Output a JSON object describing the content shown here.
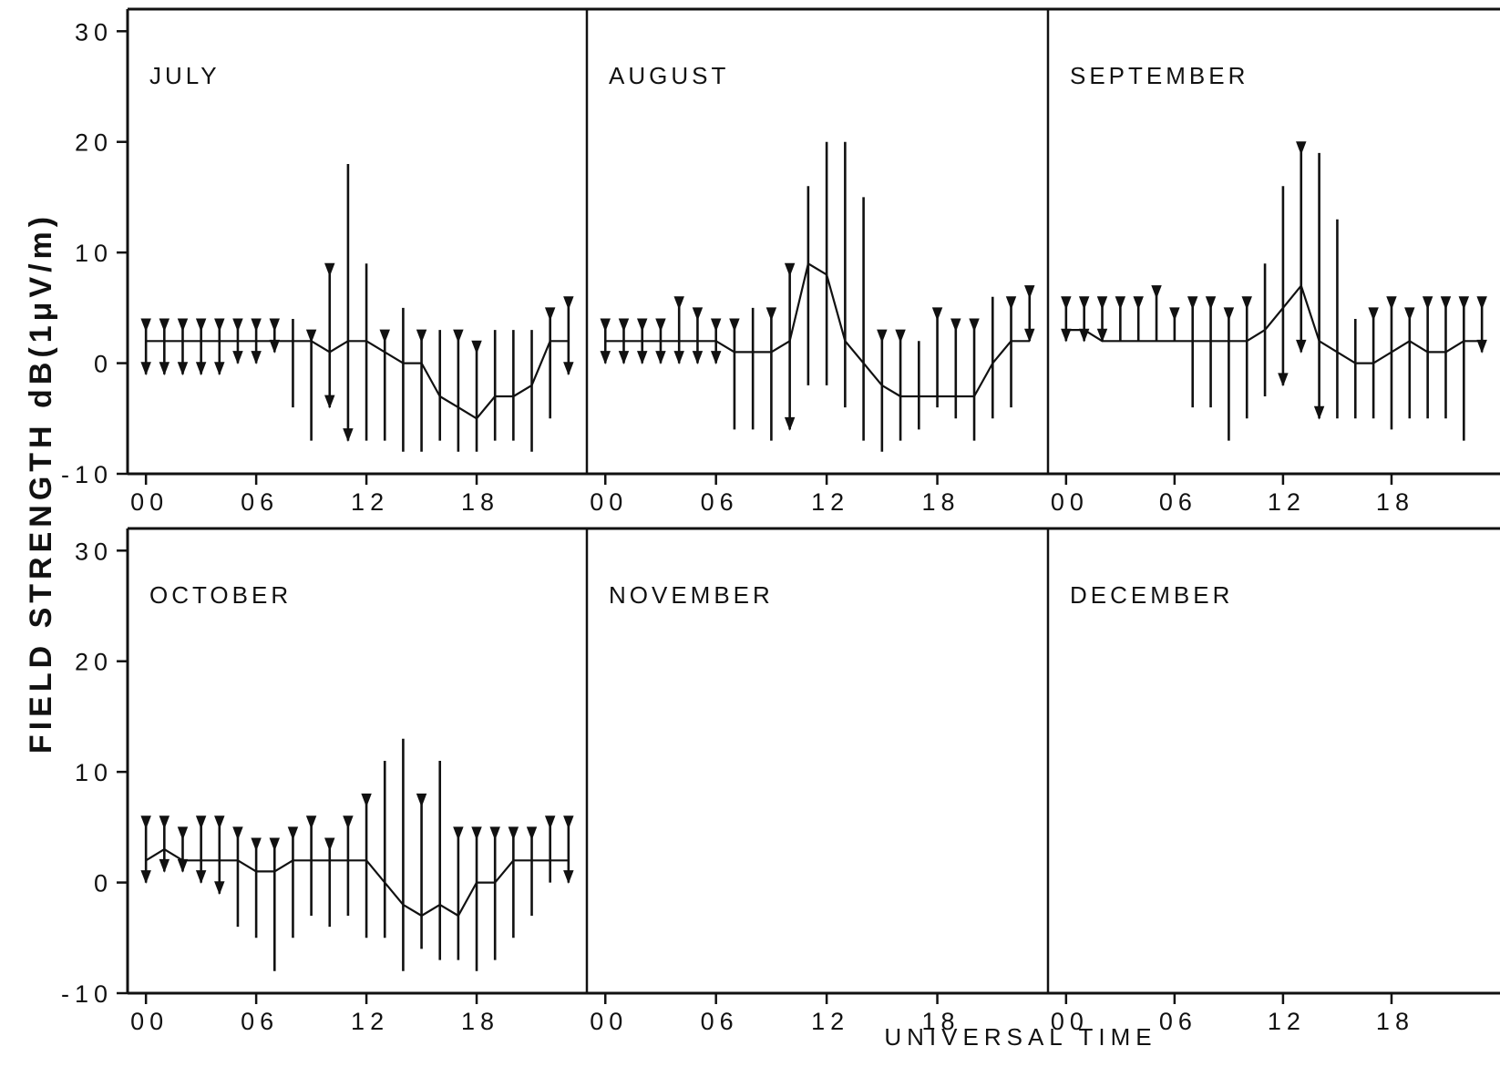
{
  "chart_data": {
    "type": "line",
    "ylabel": "FIELD STRENGTH dB(1μV/m)",
    "xlabel": "UNIVERSAL TIME",
    "ylim": [
      -10,
      32
    ],
    "xlim": [
      -1,
      24
    ],
    "y_ticks": [
      "30",
      "20",
      "10",
      "0",
      "-10"
    ],
    "x_ticks": [
      "00",
      "06",
      "12",
      "18"
    ],
    "grid": false,
    "description_of_marks": "Each hour shows a vertical range bar; arrowheads mark the extremes; solid line connects median values.",
    "panels": [
      {
        "month": "JULY",
        "hours": [
          0,
          1,
          2,
          3,
          4,
          5,
          6,
          7,
          8,
          9,
          10,
          11,
          12,
          13,
          14,
          15,
          16,
          17,
          18,
          19,
          20,
          21,
          22,
          23
        ],
        "median": [
          2,
          2,
          2,
          2,
          2,
          2,
          2,
          2,
          2,
          2,
          1,
          2,
          2,
          1,
          0,
          0,
          -3,
          -4,
          -5,
          -3,
          -3,
          -2,
          2,
          2
        ],
        "high": [
          4,
          4,
          4,
          4,
          4,
          4,
          4,
          4,
          4,
          3,
          9,
          18,
          9,
          3,
          5,
          3,
          3,
          3,
          2,
          3,
          3,
          3,
          5,
          6
        ],
        "low": [
          -1,
          -1,
          -1,
          -1,
          -1,
          0,
          0,
          1,
          -4,
          -7,
          -4,
          -7,
          -7,
          -7,
          -8,
          -8,
          -7,
          -8,
          -8,
          -7,
          -7,
          -8,
          -5,
          -1
        ],
        "top_arrow": [
          true,
          true,
          true,
          true,
          true,
          true,
          true,
          true,
          false,
          true,
          true,
          false,
          false,
          true,
          false,
          true,
          false,
          true,
          true,
          false,
          false,
          false,
          true,
          true
        ],
        "bottom_arrow": [
          true,
          true,
          true,
          true,
          true,
          true,
          true,
          true,
          false,
          false,
          true,
          true,
          false,
          false,
          false,
          false,
          false,
          false,
          false,
          false,
          false,
          false,
          false,
          true
        ]
      },
      {
        "month": "AUGUST",
        "hours": [
          0,
          1,
          2,
          3,
          4,
          5,
          6,
          7,
          8,
          9,
          10,
          11,
          12,
          13,
          14,
          15,
          16,
          17,
          18,
          19,
          20,
          21,
          22,
          23
        ],
        "median": [
          2,
          2,
          2,
          2,
          2,
          2,
          2,
          1,
          1,
          1,
          2,
          9,
          8,
          2,
          0,
          -2,
          -3,
          -3,
          -3,
          -3,
          -3,
          0,
          2,
          2
        ],
        "high": [
          4,
          4,
          4,
          4,
          6,
          5,
          4,
          4,
          5,
          5,
          9,
          16,
          20,
          20,
          15,
          3,
          3,
          2,
          5,
          4,
          4,
          6,
          6,
          7
        ],
        "low": [
          0,
          0,
          0,
          0,
          0,
          0,
          0,
          -6,
          -6,
          -7,
          -6,
          -2,
          -2,
          -4,
          -7,
          -8,
          -7,
          -6,
          -4,
          -5,
          -7,
          -5,
          -4,
          2
        ],
        "top_arrow": [
          true,
          true,
          true,
          true,
          true,
          true,
          true,
          true,
          false,
          true,
          true,
          false,
          false,
          false,
          false,
          true,
          true,
          false,
          true,
          true,
          true,
          false,
          true,
          true
        ],
        "bottom_arrow": [
          true,
          true,
          true,
          true,
          true,
          true,
          true,
          false,
          false,
          false,
          true,
          false,
          false,
          false,
          false,
          false,
          false,
          false,
          false,
          false,
          false,
          false,
          false,
          true
        ]
      },
      {
        "month": "SEPTEMBER",
        "hours": [
          0,
          1,
          2,
          3,
          4,
          5,
          6,
          7,
          8,
          9,
          10,
          11,
          12,
          13,
          14,
          15,
          16,
          17,
          18,
          19,
          20,
          21,
          22,
          23
        ],
        "median": [
          3,
          3,
          2,
          2,
          2,
          2,
          2,
          2,
          2,
          2,
          2,
          3,
          5,
          7,
          2,
          1,
          0,
          0,
          1,
          2,
          1,
          1,
          2,
          2
        ],
        "high": [
          6,
          6,
          6,
          6,
          6,
          7,
          5,
          6,
          6,
          5,
          6,
          9,
          16,
          20,
          19,
          13,
          4,
          5,
          6,
          5,
          6,
          6,
          6,
          6
        ],
        "low": [
          2,
          2,
          2,
          2,
          2,
          2,
          2,
          -4,
          -4,
          -7,
          -5,
          -3,
          -2,
          1,
          -5,
          -5,
          -5,
          -5,
          -6,
          -5,
          -5,
          -5,
          -7,
          1
        ],
        "top_arrow": [
          true,
          true,
          true,
          true,
          true,
          true,
          true,
          true,
          true,
          true,
          true,
          false,
          false,
          true,
          false,
          false,
          false,
          true,
          true,
          true,
          true,
          true,
          true,
          true
        ],
        "bottom_arrow": [
          true,
          true,
          true,
          false,
          false,
          false,
          false,
          false,
          false,
          false,
          false,
          false,
          true,
          true,
          true,
          false,
          false,
          false,
          false,
          false,
          false,
          false,
          false,
          true
        ]
      },
      {
        "month": "OCTOBER",
        "hours": [
          0,
          1,
          2,
          3,
          4,
          5,
          6,
          7,
          8,
          9,
          10,
          11,
          12,
          13,
          14,
          15,
          16,
          17,
          18,
          19,
          20,
          21,
          22,
          23
        ],
        "median": [
          2,
          3,
          2,
          2,
          2,
          2,
          1,
          1,
          2,
          2,
          2,
          2,
          2,
          0,
          -2,
          -3,
          -2,
          -3,
          0,
          0,
          2,
          2,
          2,
          2
        ],
        "high": [
          6,
          6,
          5,
          6,
          6,
          5,
          4,
          4,
          5,
          6,
          4,
          6,
          8,
          11,
          13,
          8,
          11,
          5,
          5,
          5,
          5,
          5,
          6,
          6
        ],
        "low": [
          0,
          1,
          1,
          0,
          -1,
          -4,
          -5,
          -8,
          -5,
          -3,
          -4,
          -3,
          -5,
          -5,
          -8,
          -6,
          -7,
          -7,
          -8,
          -7,
          -5,
          -3,
          0,
          0
        ],
        "top_arrow": [
          true,
          true,
          true,
          true,
          true,
          true,
          true,
          true,
          true,
          true,
          true,
          true,
          true,
          false,
          false,
          true,
          false,
          true,
          true,
          true,
          true,
          true,
          true,
          true
        ],
        "bottom_arrow": [
          true,
          true,
          true,
          true,
          true,
          false,
          false,
          false,
          false,
          false,
          false,
          false,
          false,
          false,
          false,
          false,
          false,
          false,
          false,
          false,
          false,
          false,
          false,
          true
        ]
      },
      {
        "month": "NOVEMBER",
        "hours": [],
        "median": [],
        "high": [],
        "low": [],
        "top_arrow": [],
        "bottom_arrow": []
      },
      {
        "month": "DECEMBER",
        "hours": [],
        "median": [],
        "high": [],
        "low": [],
        "top_arrow": [],
        "bottom_arrow": []
      }
    ]
  }
}
